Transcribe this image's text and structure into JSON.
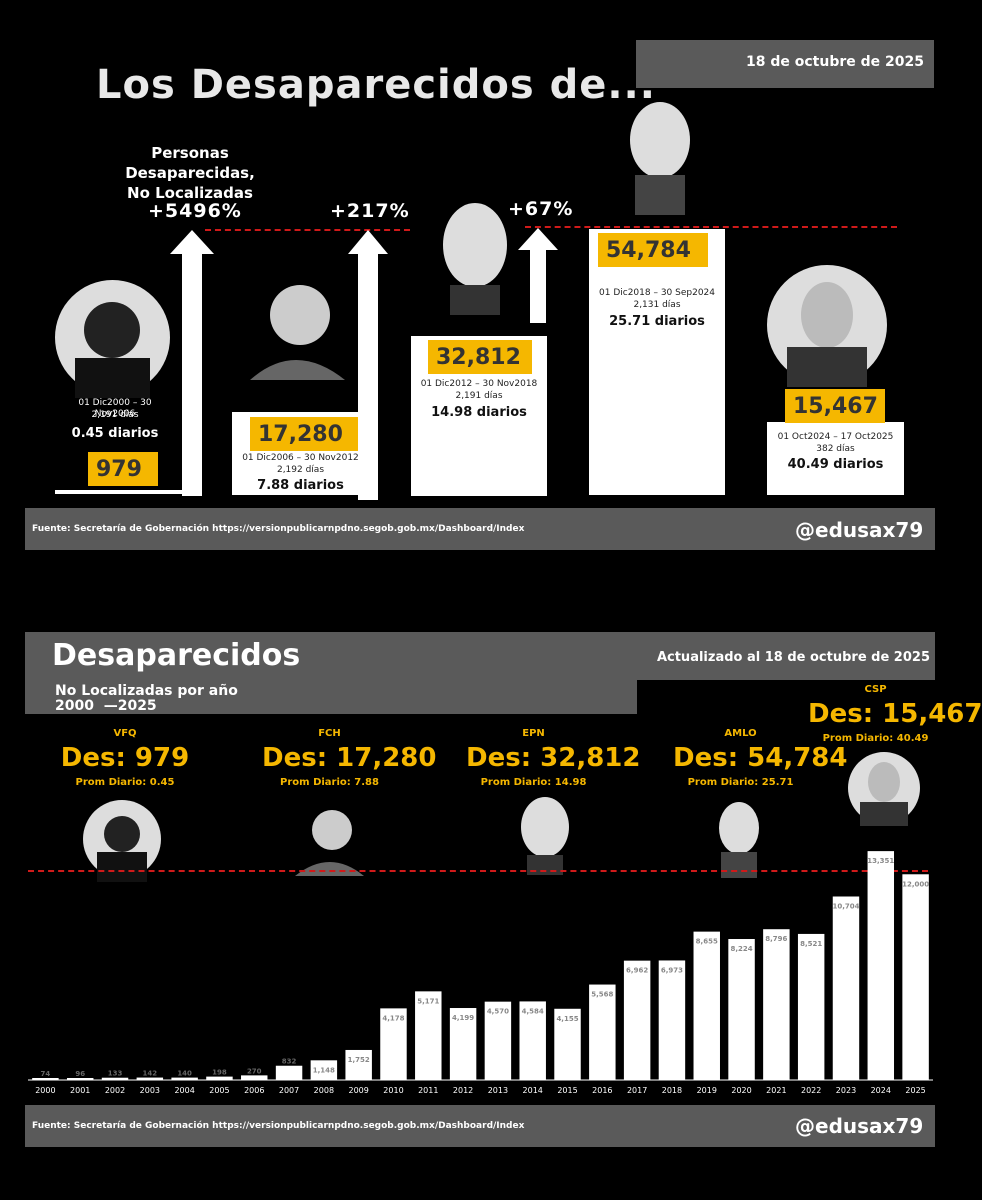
{
  "top": {
    "date": "18 de octubre de 2025",
    "title": "Los Desaparecidos de...",
    "subtitle_line1": "Personas Desaparecidas,",
    "subtitle_line2": "No Localizadas",
    "increases": [
      "+5496%",
      "+217%",
      "+67%"
    ],
    "periods": [
      {
        "value": "979",
        "range": "01 Dic2000 – 30 Nov2006",
        "days": "2,191 días",
        "daily": "0.45 diarios"
      },
      {
        "value": "17,280",
        "range": "01 Dic2006 – 30 Nov2012",
        "days": "2,192 días",
        "daily": "7.88 diarios"
      },
      {
        "value": "32,812",
        "range": "01 Dic2012 – 30 Nov2018",
        "days": "2,191 días",
        "daily": "14.98 diarios"
      },
      {
        "value": "54,784",
        "range": "01 Dic2018 – 30 Sep2024",
        "days": "2,131 días",
        "daily": "25.71 diarios"
      },
      {
        "value": "15,467",
        "range": "01 Oct2024 – 17 Oct2025",
        "days": "382 días",
        "daily": "40.49 diarios"
      }
    ],
    "source": "Fuente: Secretaría de Gobernación https://versionpublicarnpdno.segob.gob.mx/Dashboard/Index",
    "handle": "@edusax79"
  },
  "bottom": {
    "title": "Desaparecidos",
    "subtitle": "No Localizadas por año",
    "years_label": "2000  —2025",
    "date": "Actualizado al 18 de octubre de 2025",
    "presidents": [
      {
        "name": "VFQ",
        "des": "Des: 979",
        "prom": "Prom Diario: 0.45"
      },
      {
        "name": "FCH",
        "des": "Des: 17,280",
        "prom": "Prom Diario: 7.88"
      },
      {
        "name": "EPN",
        "des": "Des: 32,812",
        "prom": "Prom Diario: 14.98"
      },
      {
        "name": "AMLO",
        "des": "Des: 54,784",
        "prom": "Prom Diario: 25.71"
      },
      {
        "name": "CSP",
        "des": "Des: 15,467",
        "prom": "Prom Diario: 40.49"
      }
    ],
    "source": "Fuente: Secretaría de Gobernación https://versionpublicarnpdno.segob.gob.mx/Dashboard/Index",
    "handle": "@edusax79"
  },
  "chart_data": {
    "type": "bar",
    "categories": [
      "2000",
      "2001",
      "2002",
      "2003",
      "2004",
      "2005",
      "2006",
      "2007",
      "2008",
      "2009",
      "2010",
      "2011",
      "2012",
      "2013",
      "2014",
      "2015",
      "2016",
      "2017",
      "2018",
      "2019",
      "2020",
      "2021",
      "2022",
      "2023",
      "2024",
      "2025"
    ],
    "values": [
      74,
      96,
      133,
      142,
      140,
      198,
      270,
      832,
      1148,
      1752,
      4178,
      5171,
      4199,
      4570,
      4584,
      4155,
      5568,
      6962,
      6973,
      8655,
      8224,
      8796,
      8521,
      10704,
      13351,
      12000
    ],
    "labels": [
      "74",
      "96",
      "133",
      "142",
      "140",
      "198",
      "270",
      "832",
      "1,148",
      "1,752",
      "4,178",
      "5,171",
      "4,199",
      "4,570",
      "4,584",
      "4,155",
      "5,568",
      "6,962",
      "6,973",
      "8,655",
      "8,224",
      "8,796",
      "8,521",
      "10,704",
      "13,351",
      "12,000"
    ],
    "ylim": [
      0,
      14000
    ],
    "grid": false,
    "legend": "none"
  }
}
